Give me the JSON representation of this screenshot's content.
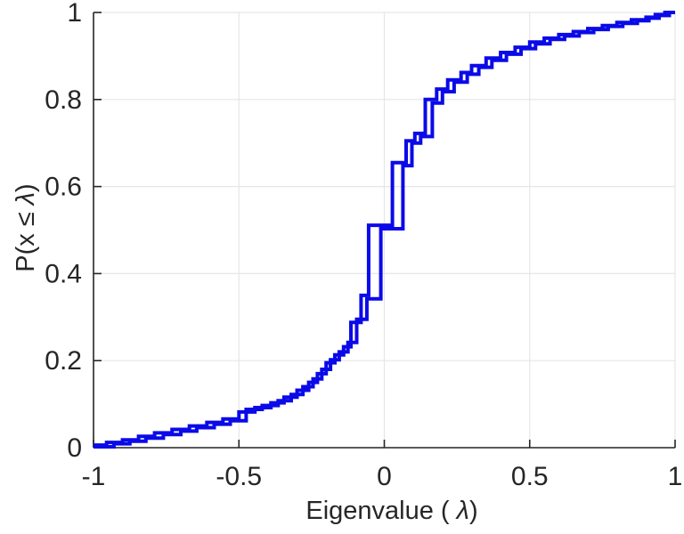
{
  "chart_data": {
    "type": "line",
    "subtype": "ecdf-staircase",
    "title": "",
    "xlabel_pre": "Eigenvalue ( ",
    "xlabel_lambda": "λ",
    "xlabel_post": ")",
    "ylabel_pre": "P(x ≤ ",
    "ylabel_lambda": "λ",
    "ylabel_post": ")",
    "xlim": [
      -1,
      1
    ],
    "ylim": [
      0,
      1
    ],
    "grid": true,
    "legend": "none",
    "line_color": "#0a0ae8",
    "axis_color": "#262626",
    "grid_color": "#e6e6e6",
    "xticks": {
      "values": [
        -1,
        -0.5,
        0,
        0.5,
        1
      ],
      "labels": [
        "-1",
        "-0.5",
        "0",
        "0.5",
        "1"
      ]
    },
    "yticks": {
      "values": [
        0,
        0.2,
        0.4,
        0.6,
        0.8,
        1
      ],
      "labels": [
        "0",
        "0.2",
        "0.4",
        "0.6",
        "0.8",
        "1"
      ]
    },
    "series": [
      {
        "name": "ecdf-curve-1",
        "steps": [
          [
            -1.0,
            0.006
          ],
          [
            -0.955,
            0.012
          ],
          [
            -0.9,
            0.018
          ],
          [
            -0.845,
            0.026
          ],
          [
            -0.79,
            0.034
          ],
          [
            -0.73,
            0.042
          ],
          [
            -0.67,
            0.05
          ],
          [
            -0.61,
            0.058
          ],
          [
            -0.555,
            0.066
          ],
          [
            -0.5,
            0.082
          ],
          [
            -0.445,
            0.092
          ],
          [
            -0.39,
            0.103
          ],
          [
            -0.345,
            0.116
          ],
          [
            -0.3,
            0.132
          ],
          [
            -0.26,
            0.15
          ],
          [
            -0.23,
            0.17
          ],
          [
            -0.2,
            0.195
          ],
          [
            -0.17,
            0.213
          ],
          [
            -0.14,
            0.232
          ],
          [
            -0.115,
            0.288
          ],
          [
            -0.08,
            0.35
          ],
          [
            -0.054,
            0.511
          ],
          [
            0.028,
            0.655
          ],
          [
            0.075,
            0.705
          ],
          [
            0.105,
            0.722
          ],
          [
            0.141,
            0.8
          ],
          [
            0.18,
            0.824
          ],
          [
            0.218,
            0.845
          ],
          [
            0.264,
            0.862
          ],
          [
            0.3,
            0.878
          ],
          [
            0.35,
            0.895
          ],
          [
            0.4,
            0.908
          ],
          [
            0.45,
            0.92
          ],
          [
            0.5,
            0.932
          ],
          [
            0.55,
            0.941
          ],
          [
            0.6,
            0.949
          ],
          [
            0.65,
            0.956
          ],
          [
            0.7,
            0.963
          ],
          [
            0.75,
            0.97
          ],
          [
            0.8,
            0.977
          ],
          [
            0.85,
            0.983
          ],
          [
            0.9,
            0.989
          ],
          [
            0.932,
            0.995
          ],
          [
            0.965,
            1.0
          ]
        ]
      },
      {
        "name": "ecdf-curve-2",
        "steps": [
          [
            -1.0,
            0.002
          ],
          [
            -0.93,
            0.009
          ],
          [
            -0.875,
            0.015
          ],
          [
            -0.82,
            0.022
          ],
          [
            -0.76,
            0.03
          ],
          [
            -0.7,
            0.038
          ],
          [
            -0.645,
            0.046
          ],
          [
            -0.585,
            0.054
          ],
          [
            -0.53,
            0.062
          ],
          [
            -0.475,
            0.088
          ],
          [
            -0.42,
            0.097
          ],
          [
            -0.365,
            0.108
          ],
          [
            -0.32,
            0.122
          ],
          [
            -0.28,
            0.14
          ],
          [
            -0.245,
            0.158
          ],
          [
            -0.215,
            0.18
          ],
          [
            -0.185,
            0.202
          ],
          [
            -0.155,
            0.22
          ],
          [
            -0.125,
            0.242
          ],
          [
            -0.095,
            0.295
          ],
          [
            -0.06,
            0.342
          ],
          [
            -0.012,
            0.503
          ],
          [
            0.064,
            0.648
          ],
          [
            0.095,
            0.7
          ],
          [
            0.125,
            0.715
          ],
          [
            0.165,
            0.792
          ],
          [
            0.2,
            0.818
          ],
          [
            0.24,
            0.84
          ],
          [
            0.285,
            0.858
          ],
          [
            0.325,
            0.874
          ],
          [
            0.37,
            0.89
          ],
          [
            0.42,
            0.904
          ],
          [
            0.47,
            0.917
          ],
          [
            0.52,
            0.928
          ],
          [
            0.57,
            0.938
          ],
          [
            0.62,
            0.946
          ],
          [
            0.67,
            0.954
          ],
          [
            0.72,
            0.961
          ],
          [
            0.77,
            0.968
          ],
          [
            0.82,
            0.975
          ],
          [
            0.87,
            0.981
          ],
          [
            0.91,
            0.987
          ],
          [
            0.945,
            0.993
          ],
          [
            0.98,
            1.0
          ]
        ]
      }
    ]
  }
}
